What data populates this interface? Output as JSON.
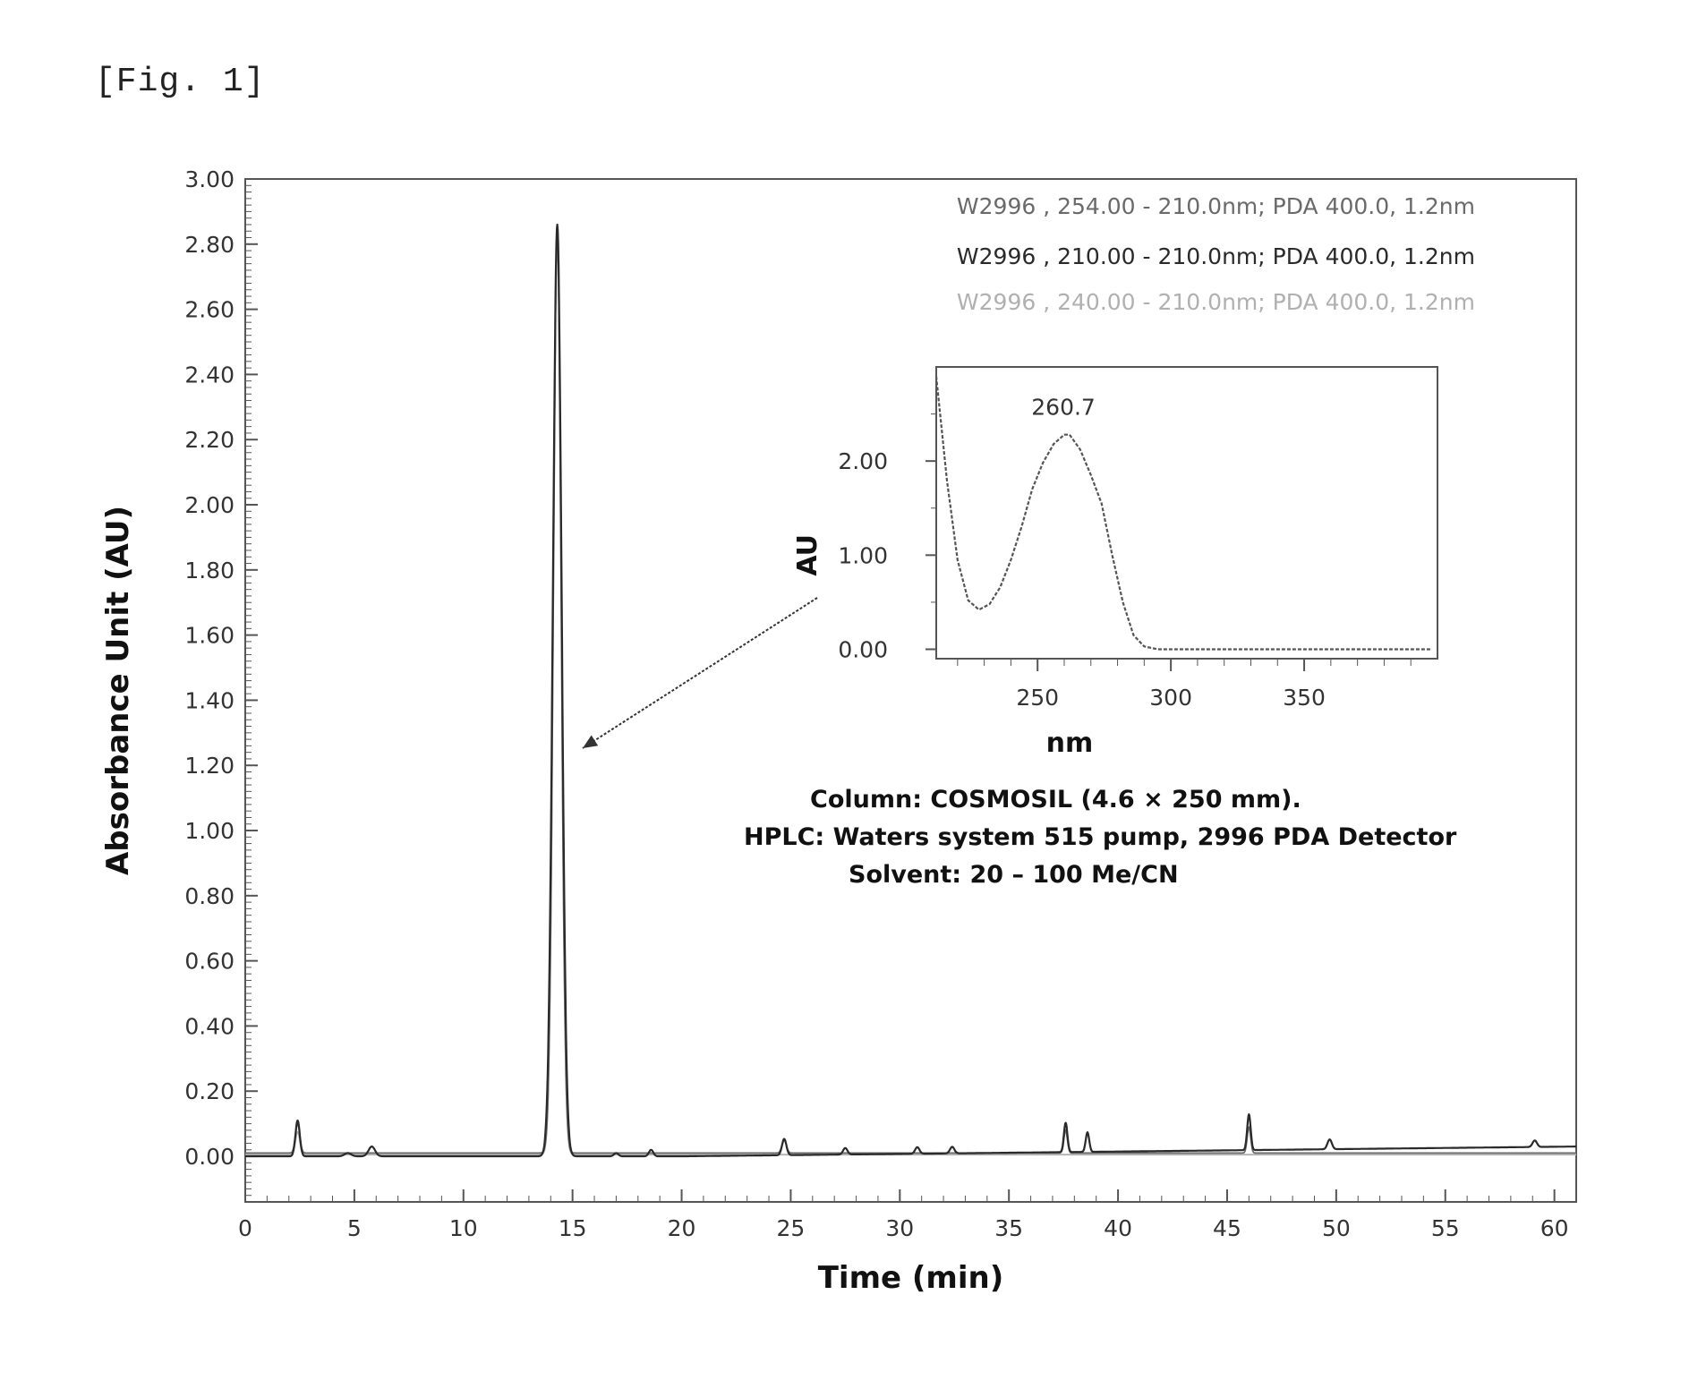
{
  "figure": {
    "label": "[Fig. 1]"
  },
  "chart_data": [
    {
      "type": "line",
      "xlabel": "Time (min)",
      "ylabel": "Absorbance Unit (AU)",
      "xlim": [
        0,
        61
      ],
      "ylim": [
        -0.14,
        3.0
      ],
      "x_ticks": [
        0,
        5,
        10,
        15,
        20,
        25,
        30,
        35,
        40,
        45,
        50,
        55,
        60
      ],
      "y_ticks": [
        0.0,
        0.2,
        0.4,
        0.6,
        0.8,
        1.0,
        1.2,
        1.4,
        1.6,
        1.8,
        2.0,
        2.2,
        2.4,
        2.6,
        2.8,
        3.0
      ],
      "y_tick_labels": [
        "0.00",
        "0.20",
        "0.40",
        "0.60",
        "0.80",
        "1.00",
        "1.20",
        "1.40",
        "1.60",
        "1.80",
        "2.00",
        "2.20",
        "2.40",
        "2.60",
        "2.80",
        "3.00"
      ],
      "grid": false,
      "legend": [
        {
          "label": "W2996 , 254.00 - 210.0nm; PDA 400.0, 1.2nm",
          "color": "#6a6a6a"
        },
        {
          "label": "W2996 , 210.00 - 210.0nm; PDA 400.0, 1.2nm",
          "color": "#2a2a2a"
        },
        {
          "label": "W2996 , 240.00 - 210.0nm; PDA 400.0, 1.2nm",
          "color": "#b0b0b0"
        }
      ],
      "legend_position": "top-right",
      "series": [
        {
          "name": "W2996 , 254.00 - 210.0nm; PDA 400.0, 1.2nm",
          "color": "#6a6a6a",
          "baseline": 0.01,
          "peaks": [
            {
              "x": 2.4,
              "height": 0.09,
              "width": 0.1
            },
            {
              "x": 14.3,
              "height": 2.84,
              "width": 0.18
            },
            {
              "x": 24.7,
              "height": 0.04,
              "width": 0.1
            },
            {
              "x": 37.6,
              "height": 0.07,
              "width": 0.08
            },
            {
              "x": 46.0,
              "height": 0.08,
              "width": 0.08
            }
          ]
        },
        {
          "name": "W2996 , 210.00 - 210.0nm; PDA 400.0, 1.2nm",
          "color": "#2a2a2a",
          "baseline": 0.0,
          "drift_end": 0.03,
          "peaks": [
            {
              "x": 2.4,
              "height": 0.11,
              "width": 0.1
            },
            {
              "x": 4.7,
              "height": 0.01,
              "width": 0.15
            },
            {
              "x": 5.8,
              "height": 0.03,
              "width": 0.15
            },
            {
              "x": 14.3,
              "height": 2.86,
              "width": 0.2
            },
            {
              "x": 17.0,
              "height": 0.01,
              "width": 0.1
            },
            {
              "x": 18.6,
              "height": 0.02,
              "width": 0.1
            },
            {
              "x": 24.7,
              "height": 0.05,
              "width": 0.1
            },
            {
              "x": 27.5,
              "height": 0.02,
              "width": 0.1
            },
            {
              "x": 30.8,
              "height": 0.02,
              "width": 0.1
            },
            {
              "x": 32.4,
              "height": 0.02,
              "width": 0.1
            },
            {
              "x": 37.6,
              "height": 0.09,
              "width": 0.08
            },
            {
              "x": 38.6,
              "height": 0.06,
              "width": 0.08
            },
            {
              "x": 46.0,
              "height": 0.11,
              "width": 0.08
            },
            {
              "x": 49.7,
              "height": 0.03,
              "width": 0.1
            },
            {
              "x": 59.1,
              "height": 0.02,
              "width": 0.1
            }
          ]
        },
        {
          "name": "W2996 , 240.00 - 210.0nm; PDA 400.0, 1.2nm",
          "color": "#b0b0b0",
          "baseline": 0.005,
          "peaks": [
            {
              "x": 2.4,
              "height": 0.07,
              "width": 0.1
            },
            {
              "x": 14.3,
              "height": 2.8,
              "width": 0.18
            }
          ]
        }
      ]
    },
    {
      "type": "line",
      "title": "",
      "xlabel": "nm",
      "ylabel": "AU",
      "xlim": [
        212,
        400
      ],
      "ylim": [
        -0.1,
        3.0
      ],
      "x_ticks": [
        250,
        300,
        350
      ],
      "y_ticks": [
        0.0,
        1.0,
        2.0
      ],
      "y_tick_labels": [
        "0.00",
        "1.00",
        "2.00"
      ],
      "peak_annotation": {
        "x": 260.7,
        "y": 2.28,
        "label": "260.7"
      },
      "series": [
        {
          "name": "",
          "color": "#555555",
          "x": [
            212,
            216,
            220,
            224,
            228,
            232,
            236,
            240,
            244,
            248,
            252,
            256,
            260,
            262,
            266,
            270,
            274,
            278,
            282,
            286,
            290,
            295,
            300,
            320,
            340,
            360,
            380,
            398
          ],
          "y": [
            2.9,
            1.8,
            0.95,
            0.52,
            0.42,
            0.48,
            0.66,
            0.95,
            1.3,
            1.7,
            1.98,
            2.18,
            2.28,
            2.28,
            2.12,
            1.85,
            1.55,
            1.0,
            0.5,
            0.15,
            0.03,
            0.0,
            0.0,
            0.0,
            0.0,
            0.0,
            0.0,
            0.0
          ]
        }
      ]
    }
  ],
  "annotations": {
    "column": "Column: COSMOSIL (4.6 × 250 mm).",
    "hplc": "HPLC: Waters system 515 pump, 2996 PDA Detector",
    "solvent": "Solvent: 20 – 100 Me/CN"
  }
}
